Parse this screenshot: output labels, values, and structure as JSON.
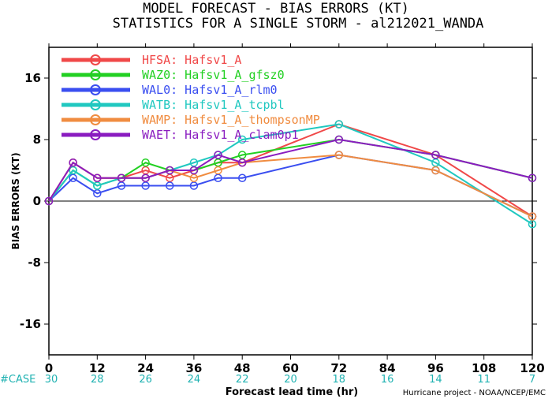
{
  "chart_data": {
    "type": "line",
    "title_line1": "MODEL FORECAST - BIAS ERRORS (KT)",
    "title_line2": "STATISTICS FOR A SINGLE STORM - al212021_WANDA",
    "xlabel": "Forecast lead time (hr)",
    "ylabel": "BIAS ERRORS (KT)",
    "xlim": [
      0,
      120
    ],
    "ylim": [
      -20,
      20
    ],
    "x_ticks": [
      0,
      12,
      24,
      36,
      48,
      60,
      72,
      84,
      96,
      108,
      120
    ],
    "y_ticks": [
      -16,
      -8,
      0,
      8,
      16
    ],
    "case_label": "#CASE",
    "case_counts": [
      "30",
      "28",
      "26",
      "24",
      "22",
      "20",
      "18",
      "16",
      "14",
      "11",
      "7"
    ],
    "credit": "Hurricane project - NOAA/NCEP/EMC",
    "grid": false,
    "legend_position": "top-left",
    "series": [
      {
        "name": "HFSA: Hafsv1_A",
        "color": "#f04848",
        "x": [
          0,
          6,
          12,
          18,
          24,
          30,
          36,
          42,
          48,
          72,
          96,
          120
        ],
        "y": [
          0,
          5,
          3,
          3,
          4,
          3,
          4,
          5,
          5,
          10,
          6,
          -2
        ]
      },
      {
        "name": "WAZ0: Hafsv1_A_gfsz0",
        "color": "#22d022",
        "x": [
          0,
          6,
          12,
          18,
          24,
          30,
          36,
          42,
          48,
          72,
          96,
          120
        ],
        "y": [
          0,
          4,
          2,
          3,
          5,
          4,
          4,
          5,
          6,
          8,
          6,
          3
        ]
      },
      {
        "name": "WAL0: Hafsv1_A_rlm0",
        "color": "#3a4ef0",
        "x": [
          0,
          6,
          12,
          18,
          24,
          30,
          36,
          42,
          48,
          72,
          96,
          120
        ],
        "y": [
          0,
          3,
          1,
          2,
          2,
          2,
          2,
          3,
          3,
          6,
          4,
          -2
        ]
      },
      {
        "name": "WATB: Hafsv1_A_tcpbl",
        "color": "#20c8c0",
        "x": [
          0,
          6,
          12,
          18,
          24,
          30,
          36,
          42,
          48,
          72,
          96,
          120
        ],
        "y": [
          0,
          4,
          2,
          3,
          3,
          4,
          5,
          6,
          8,
          10,
          5,
          -3
        ]
      },
      {
        "name": "WAMP: Hafsv1_A_thompsonMP",
        "color": "#f08c40",
        "x": [
          0,
          6,
          12,
          18,
          24,
          30,
          36,
          42,
          48,
          72,
          96,
          120
        ],
        "y": [
          0,
          5,
          3,
          3,
          3,
          4,
          3,
          4,
          5,
          6,
          4,
          -2
        ]
      },
      {
        "name": "WAET: Hafsv1_A_clam0p1",
        "color": "#8a1cc0",
        "x": [
          0,
          6,
          12,
          18,
          24,
          30,
          36,
          42,
          48,
          72,
          96,
          120
        ],
        "y": [
          0,
          5,
          3,
          3,
          3,
          4,
          4,
          6,
          5,
          8,
          6,
          3
        ]
      }
    ]
  }
}
